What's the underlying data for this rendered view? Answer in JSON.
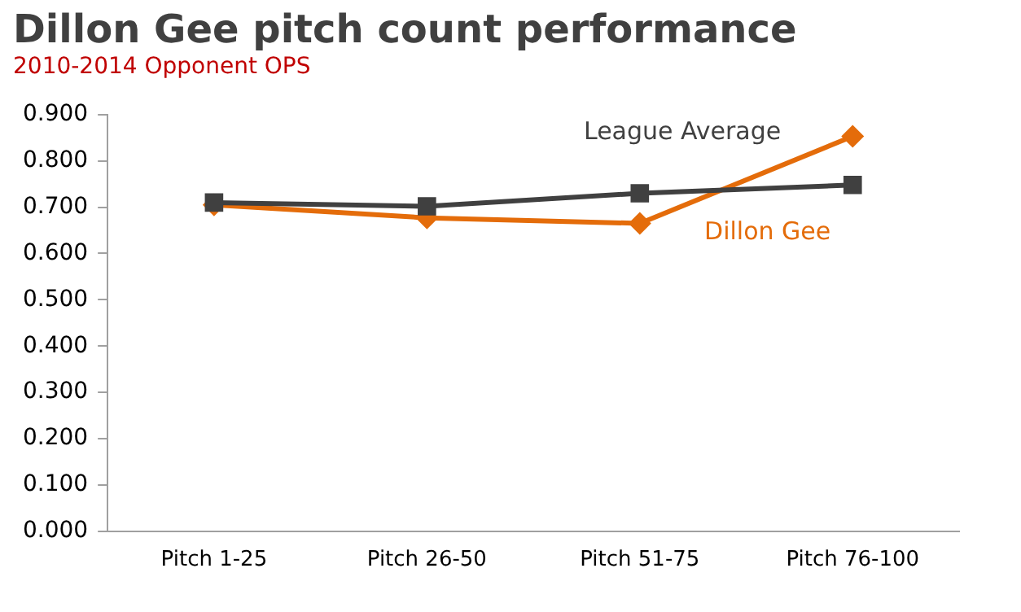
{
  "chart_data": {
    "type": "line",
    "title": "Dillon Gee pitch count performance",
    "subtitle": "2010-2014 Opponent OPS",
    "categories": [
      "Pitch 1-25",
      "Pitch 26-50",
      "Pitch 51-75",
      "Pitch 76-100"
    ],
    "series": [
      {
        "name": "League Average",
        "color": "#404040",
        "marker": "square",
        "values": [
          0.71,
          0.702,
          0.73,
          0.748
        ]
      },
      {
        "name": "Dillon Gee",
        "color": "#e46c0a",
        "marker": "diamond",
        "values": [
          0.705,
          0.677,
          0.665,
          0.853
        ]
      }
    ],
    "ylim": [
      0,
      0.9
    ],
    "yticks": [
      {
        "value": 0,
        "label": "0.000"
      },
      {
        "value": 0.1,
        "label": "0.100"
      },
      {
        "value": 0.2,
        "label": "0.200"
      },
      {
        "value": 0.3,
        "label": "0.300"
      },
      {
        "value": 0.4,
        "label": "0.400"
      },
      {
        "value": 0.5,
        "label": "0.500"
      },
      {
        "value": 0.6,
        "label": "0.600"
      },
      {
        "value": 0.7,
        "label": "0.700"
      },
      {
        "value": 0.8,
        "label": "0.800"
      },
      {
        "value": 0.9,
        "label": "0.900"
      }
    ],
    "grid": false,
    "legend": false
  }
}
